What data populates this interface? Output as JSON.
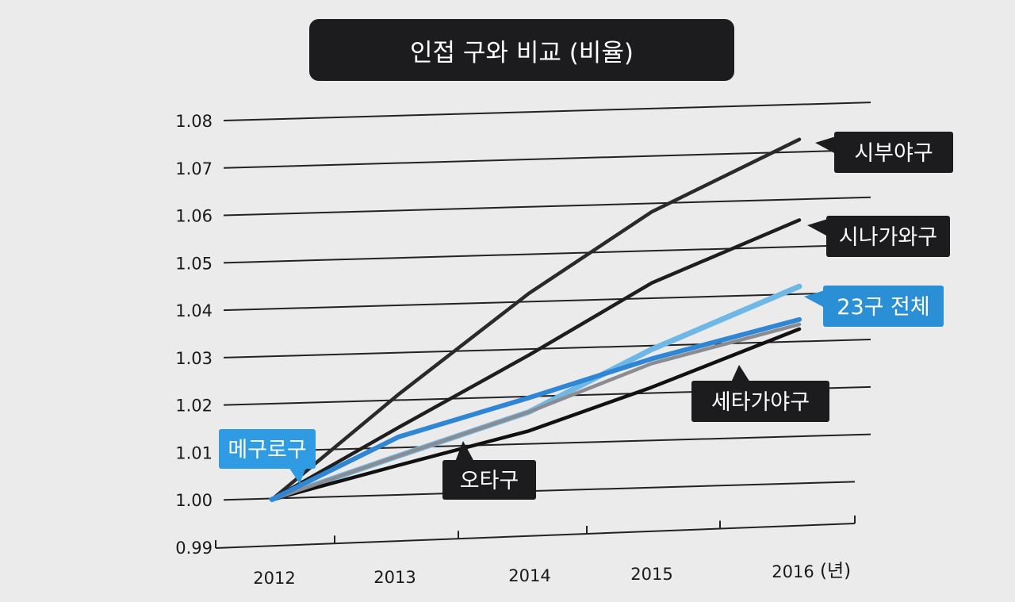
{
  "chart_data": {
    "type": "line",
    "title": "인접 구와 비교 (비율)",
    "x": [
      "2012",
      "2013",
      "2014",
      "2015",
      "2016"
    ],
    "x_unit": "(년)",
    "ylim": [
      0.99,
      1.08
    ],
    "yticks": [
      "1.08",
      "1.07",
      "1.06",
      "1.05",
      "1.04",
      "1.03",
      "1.02",
      "1.01",
      "1.00",
      "0.99"
    ],
    "grid": true,
    "series": [
      {
        "name": "시부야구",
        "values": [
          1.0,
          1.022,
          1.043,
          1.06,
          1.075
        ],
        "color": "#2a2a2c",
        "label_bg": "#1c1c1e"
      },
      {
        "name": "시나가와구",
        "values": [
          1.0,
          1.015,
          1.03,
          1.045,
          1.058
        ],
        "color": "#1e1e20",
        "label_bg": "#1c1c1e"
      },
      {
        "name": "23구 전체",
        "values": [
          1.0,
          1.009,
          1.018,
          1.031,
          1.044
        ],
        "color": "#6fb8e6",
        "label_bg": "#2b8fd6"
      },
      {
        "name": "메구로구",
        "values": [
          1.0,
          1.013,
          1.021,
          1.029,
          1.037
        ],
        "color": "#2e86d4",
        "label_bg": "#2e9be2"
      },
      {
        "name": "오타구",
        "values": [
          1.0,
          1.009,
          1.018,
          1.028,
          1.036
        ],
        "color": "#8c8c90",
        "label_bg": "#1c1c1e"
      },
      {
        "name": "세타가야구",
        "values": [
          1.0,
          1.007,
          1.014,
          1.023,
          1.035
        ],
        "color": "#111113",
        "label_bg": "#1c1c1e"
      }
    ]
  }
}
